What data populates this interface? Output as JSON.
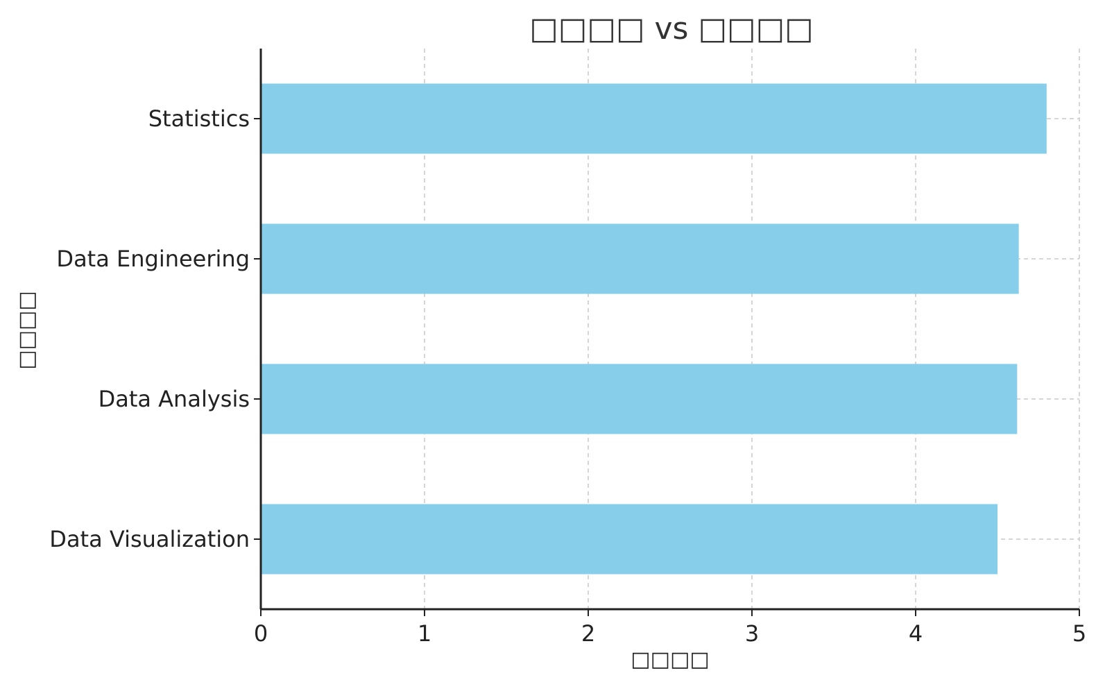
{
  "chart_data": {
    "type": "bar",
    "orientation": "horizontal",
    "title": "□□□□ vs □□□□",
    "xlabel": "□□□□",
    "ylabel": "□□□□",
    "categories": [
      "Statistics",
      "Data Engineering",
      "Data Analysis",
      "Data Visualization"
    ],
    "values": [
      4.8,
      4.63,
      4.62,
      4.5
    ],
    "xlim": [
      0,
      5
    ],
    "xticks": [
      "0",
      "1",
      "2",
      "3",
      "4",
      "5"
    ],
    "grid": true,
    "bar_color": "#87CEEB"
  }
}
